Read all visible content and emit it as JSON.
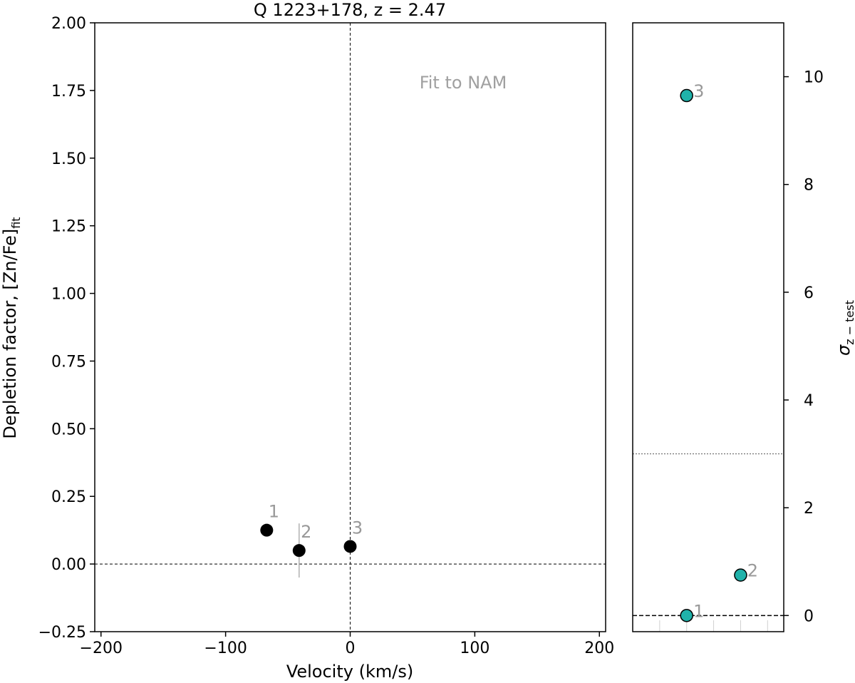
{
  "chart_data": [
    {
      "type": "scatter",
      "title": "Q 1223+178, z = 2.47",
      "xlabel": "Velocity (km/s)",
      "ylabel_main": "Depletion factor, [Zn/Fe]",
      "ylabel_sub": "fit",
      "xlim": [
        -205,
        205
      ],
      "ylim": [
        -0.25,
        2.0
      ],
      "x_ticks": [
        -200,
        -100,
        0,
        100,
        200
      ],
      "x_tick_labels": [
        "−200",
        "−100",
        "0",
        "100",
        "200"
      ],
      "y_ticks": [
        -0.25,
        0.0,
        0.25,
        0.5,
        0.75,
        1.0,
        1.25,
        1.5,
        1.75,
        2.0
      ],
      "y_tick_labels": [
        "−0.25",
        "0.00",
        "0.25",
        "0.50",
        "0.75",
        "1.00",
        "1.25",
        "1.50",
        "1.75",
        "2.00"
      ],
      "annotation": "Fit to NAM",
      "reference_lines": {
        "x": 0,
        "y": 0
      },
      "grid": false,
      "marker_color": "#000000",
      "points": [
        {
          "label": "1",
          "x": -67,
          "y": 0.125,
          "err": 0.0
        },
        {
          "label": "2",
          "x": -41,
          "y": 0.05,
          "err": 0.1
        },
        {
          "label": "3",
          "x": 0,
          "y": 0.065,
          "err": 0.0
        }
      ]
    },
    {
      "type": "scatter",
      "ylabel": "σ",
      "ylabel_sub": "z − test",
      "xlim": [
        0,
        5.6
      ],
      "ylim": [
        -0.3,
        11.0
      ],
      "y_ticks": [
        0,
        2,
        4,
        6,
        8,
        10
      ],
      "y_tick_labels": [
        "0",
        "2",
        "4",
        "6",
        "8",
        "10"
      ],
      "y_axis_side": "right",
      "reference_lines": {
        "threshold": 3,
        "zero": 0
      },
      "grid": false,
      "marker_color": "#20b2aa",
      "points": [
        {
          "label": "1",
          "x": 2,
          "y": 0.0
        },
        {
          "label": "2",
          "x": 4,
          "y": 0.75
        },
        {
          "label": "3",
          "x": 2,
          "y": 9.65
        }
      ]
    }
  ]
}
